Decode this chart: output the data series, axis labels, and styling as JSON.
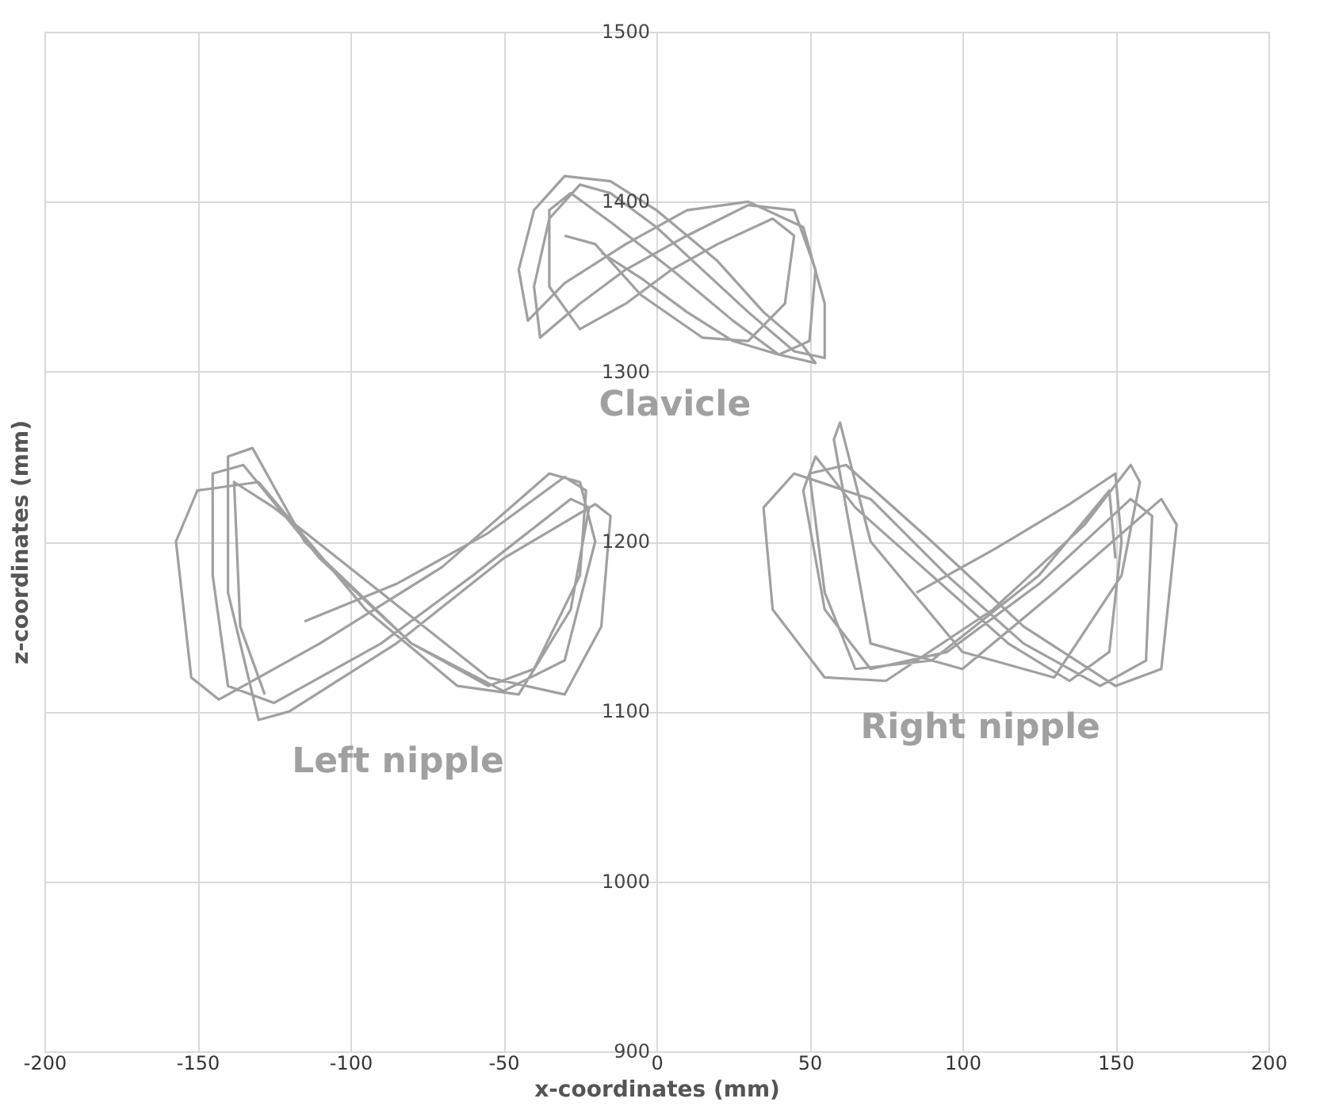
{
  "chart_data": {
    "type": "line",
    "xlabel": "x-coordinates (mm)",
    "ylabel": "z-coordinates (mm)",
    "xlim": [
      -200,
      200
    ],
    "xticks": [
      -200,
      -150,
      -100,
      -50,
      0,
      50,
      100,
      150,
      200
    ],
    "ylim": [
      900,
      1500
    ],
    "yticks": [
      900,
      1000,
      1100,
      1200,
      1300,
      1400,
      1500
    ],
    "grid": true,
    "marker": "none",
    "line_style": "solid",
    "legend": false,
    "series": [
      {
        "name": "Clavicle",
        "color": "#a0a0a0",
        "x": [
          -18,
          -5,
          10,
          25,
          40,
          50,
          52,
          45,
          30,
          10,
          -10,
          -25,
          -38,
          -40,
          -35,
          -25,
          -15,
          0,
          15,
          30,
          45,
          55,
          55,
          48,
          30,
          10,
          -10,
          -30,
          -42,
          -45,
          -40,
          -30,
          -15,
          0,
          20,
          35,
          48,
          52,
          40,
          25,
          5,
          -15,
          -28,
          -35,
          -35,
          -25,
          -10,
          5,
          20,
          38,
          45,
          42,
          30,
          15,
          -5,
          -20,
          -30
        ],
        "values": [
          1370,
          1355,
          1335,
          1318,
          1310,
          1318,
          1360,
          1395,
          1398,
          1380,
          1360,
          1340,
          1320,
          1350,
          1390,
          1410,
          1405,
          1385,
          1360,
          1335,
          1312,
          1308,
          1340,
          1385,
          1400,
          1395,
          1375,
          1352,
          1330,
          1360,
          1395,
          1415,
          1412,
          1395,
          1365,
          1335,
          1315,
          1305,
          1310,
          1330,
          1360,
          1388,
          1405,
          1395,
          1350,
          1325,
          1340,
          1360,
          1375,
          1390,
          1380,
          1340,
          1318,
          1320,
          1345,
          1375,
          1380
        ]
      },
      {
        "name": "Left nipple",
        "color": "#a0a0a0",
        "x": [
          -115,
          -85,
          -55,
          -30,
          -23,
          -25,
          -40,
          -55,
          -80,
          -110,
          -135,
          -145,
          -145,
          -140,
          -125,
          -90,
          -60,
          -28,
          -22,
          -28,
          -45,
          -65,
          -95,
          -130,
          -150,
          -157,
          -152,
          -143,
          -110,
          -70,
          -35,
          -25,
          -20,
          -30,
          -50,
          -80,
          -115,
          -132,
          -140,
          -140,
          -130,
          -120,
          -85,
          -50,
          -20,
          -15,
          -18,
          -30,
          -55,
          -90,
          -125,
          -138,
          -136,
          -128
        ],
        "values": [
          1153,
          1175,
          1205,
          1238,
          1230,
          1180,
          1125,
          1115,
          1140,
          1190,
          1245,
          1240,
          1180,
          1115,
          1105,
          1140,
          1180,
          1225,
          1220,
          1160,
          1110,
          1115,
          1160,
          1235,
          1230,
          1200,
          1120,
          1107,
          1140,
          1185,
          1240,
          1235,
          1200,
          1130,
          1112,
          1140,
          1200,
          1255,
          1250,
          1170,
          1095,
          1100,
          1140,
          1190,
          1222,
          1215,
          1150,
          1110,
          1120,
          1170,
          1220,
          1235,
          1150,
          1110
        ]
      },
      {
        "name": "Right nipple",
        "color": "#a0a0a0",
        "x": [
          85,
          110,
          135,
          150,
          152,
          148,
          135,
          115,
          90,
          65,
          52,
          48,
          55,
          70,
          95,
          125,
          155,
          162,
          160,
          145,
          120,
          95,
          70,
          45,
          35,
          38,
          55,
          75,
          110,
          140,
          155,
          158,
          152,
          130,
          100,
          70,
          60,
          58,
          70,
          100,
          130,
          165,
          170,
          165,
          150,
          120,
          90,
          62,
          50,
          55,
          65,
          90,
          125,
          148,
          150
        ],
        "values": [
          1170,
          1195,
          1222,
          1240,
          1200,
          1135,
          1118,
          1140,
          1180,
          1220,
          1250,
          1230,
          1160,
          1125,
          1135,
          1175,
          1225,
          1215,
          1130,
          1115,
          1140,
          1180,
          1225,
          1240,
          1220,
          1160,
          1120,
          1118,
          1160,
          1210,
          1245,
          1235,
          1180,
          1120,
          1135,
          1200,
          1270,
          1260,
          1140,
          1125,
          1170,
          1225,
          1210,
          1125,
          1115,
          1150,
          1200,
          1245,
          1240,
          1170,
          1125,
          1130,
          1180,
          1230,
          1190
        ]
      }
    ]
  }
}
